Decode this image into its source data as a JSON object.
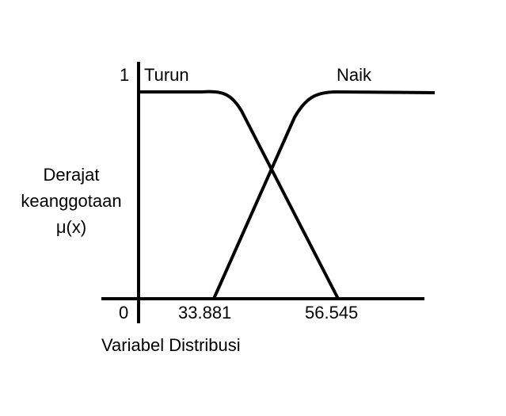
{
  "diagram": {
    "y_axis_label_lines": [
      "Derajat",
      "keanggotaan",
      "μ(x)"
    ],
    "x_axis_label": "Variabel Distribusi",
    "y_tick_top": "1",
    "x_origin_label": "0",
    "x_tick_labels": [
      "33.881",
      "56.545"
    ],
    "sets": [
      {
        "name": "Turun",
        "shape": "decreasing",
        "start": 33.881,
        "end": 56.545
      },
      {
        "name": "Naik",
        "shape": "increasing",
        "start": 33.881,
        "end": 56.545
      }
    ]
  }
}
